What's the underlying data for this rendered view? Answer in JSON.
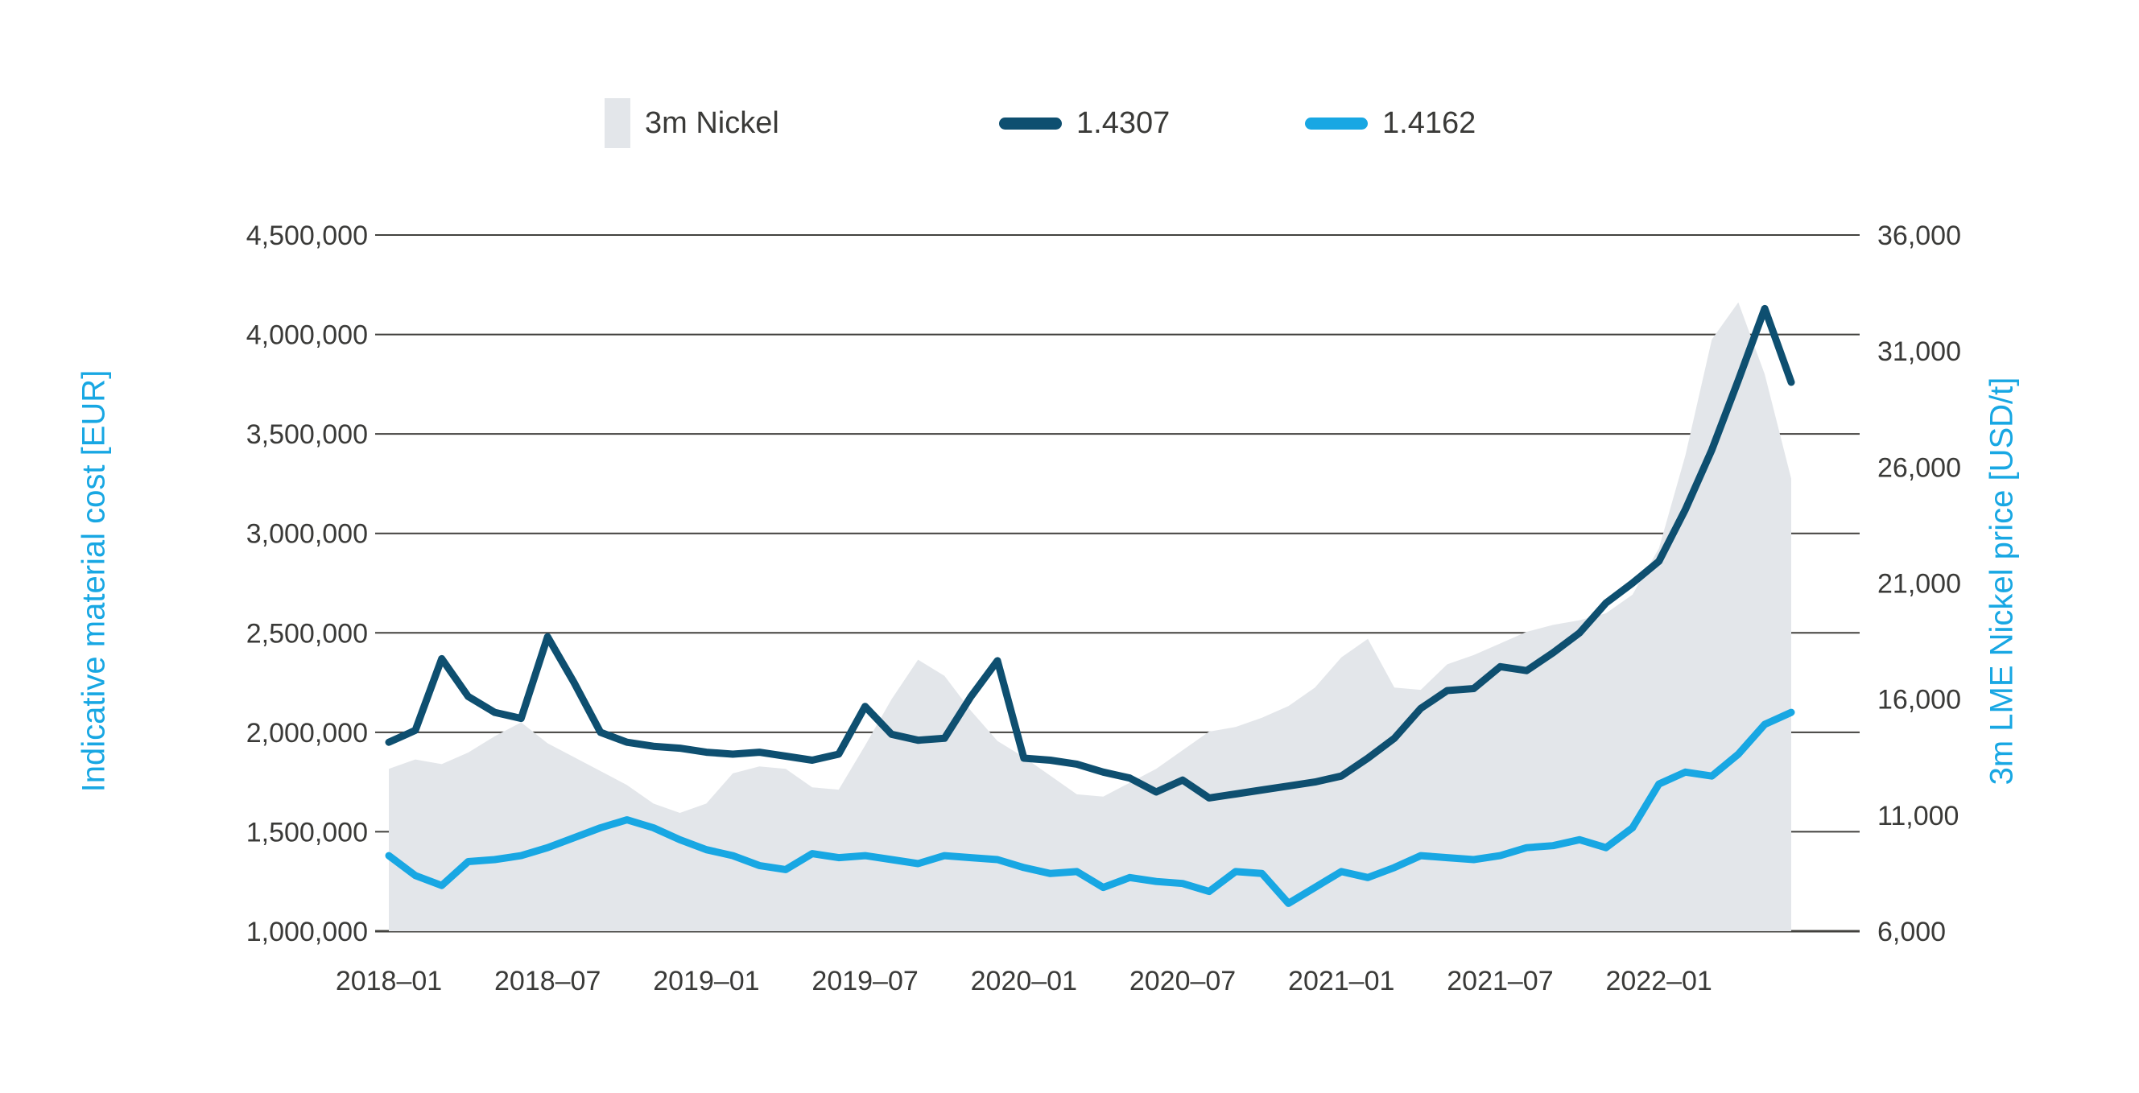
{
  "legend": {
    "items": [
      {
        "label": "3m Nickel",
        "swatch": "area-swatch",
        "color": "#e3e6ea"
      },
      {
        "label": "1.4307",
        "swatch": "line-swatch",
        "color": "#0e4f70"
      },
      {
        "label": "1.4162",
        "swatch": "line-swatch",
        "color": "#18a7e3"
      }
    ]
  },
  "colors": {
    "area": "#e3e6ea",
    "dark_line": "#0e4f70",
    "light_line": "#18a7e3",
    "grid": "#42413e",
    "text": "#3a3a38",
    "axis_title": "#18a7e3"
  },
  "chart_data": {
    "type": "combo",
    "subtypes": [
      "area",
      "line",
      "line"
    ],
    "grid": true,
    "legend_position": "top",
    "x": [
      "2018-01",
      "2018-02",
      "2018-03",
      "2018-04",
      "2018-05",
      "2018-06",
      "2018-07",
      "2018-08",
      "2018-09",
      "2018-10",
      "2018-11",
      "2018-12",
      "2019-01",
      "2019-02",
      "2019-03",
      "2019-04",
      "2019-05",
      "2019-06",
      "2019-07",
      "2019-08",
      "2019-09",
      "2019-10",
      "2019-11",
      "2019-12",
      "2020-01",
      "2020-02",
      "2020-03",
      "2020-04",
      "2020-05",
      "2020-06",
      "2020-07",
      "2020-08",
      "2020-09",
      "2020-10",
      "2020-11",
      "2020-12",
      "2021-01",
      "2021-02",
      "2021-03",
      "2021-04",
      "2021-05",
      "2021-06",
      "2021-07",
      "2021-08",
      "2021-09",
      "2021-10",
      "2021-11",
      "2021-12",
      "2022-01",
      "2022-02",
      "2022-03",
      "2022-04",
      "2022-05",
      "2022-06"
    ],
    "x_tick_labels": [
      "2018–01",
      "2018–07",
      "2019–01",
      "2019–07",
      "2020–01",
      "2020–07",
      "2021–01",
      "2021–07",
      "2022–01"
    ],
    "x_tick_indices": [
      0,
      6,
      12,
      18,
      24,
      30,
      36,
      42,
      48
    ],
    "left_axis": {
      "label": "Indicative material cost [EUR]",
      "min": 1000000,
      "max": 4500000,
      "tick_step": 500000,
      "tick_labels": [
        "4,500,000",
        "4,000,000",
        "3,500,000",
        "3,000,000",
        "2,500,000",
        "2,000,000",
        "1,500,000",
        "1,000,000"
      ]
    },
    "right_axis": {
      "label": "3m LME Nickel price [USD/t]",
      "min": 6000,
      "max": 36000,
      "tick_step": 5000,
      "tick_labels": [
        "36,000",
        "31,000",
        "26,000",
        "21,000",
        "16,000",
        "11,000",
        "6,000"
      ]
    },
    "series": [
      {
        "name": "3m Nickel",
        "type": "area",
        "axis": "right",
        "color": "#e3e6ea",
        "values": [
          13000,
          13400,
          13200,
          13700,
          14400,
          15000,
          14100,
          13500,
          12900,
          12300,
          11500,
          11100,
          11500,
          12800,
          13100,
          13000,
          12200,
          12100,
          14000,
          16000,
          17700,
          17000,
          15500,
          14200,
          13500,
          12700,
          11900,
          11800,
          12400,
          13000,
          13800,
          14600,
          14800,
          15200,
          15700,
          16500,
          17800,
          18600,
          16500,
          16400,
          17500,
          17900,
          18400,
          18900,
          19200,
          19400,
          19700,
          20500,
          22500,
          26500,
          31500,
          33100,
          30000,
          25500
        ]
      },
      {
        "name": "1.4307",
        "type": "line",
        "axis": "left",
        "color": "#0e4f70",
        "values": [
          1950000,
          2010000,
          2370000,
          2180000,
          2100000,
          2070000,
          2480000,
          2250000,
          2000000,
          1950000,
          1930000,
          1920000,
          1900000,
          1890000,
          1900000,
          1880000,
          1860000,
          1890000,
          2130000,
          1990000,
          1960000,
          1970000,
          2180000,
          2360000,
          1870000,
          1860000,
          1840000,
          1800000,
          1770000,
          1700000,
          1760000,
          1670000,
          1690000,
          1710000,
          1730000,
          1750000,
          1780000,
          1870000,
          1970000,
          2120000,
          2210000,
          2220000,
          2330000,
          2310000,
          2400000,
          2500000,
          2650000,
          2750000,
          2860000,
          3120000,
          3420000,
          3770000,
          4130000,
          3760000
        ]
      },
      {
        "name": "1.4162",
        "type": "line",
        "axis": "left",
        "color": "#18a7e3",
        "values": [
          1380000,
          1280000,
          1230000,
          1350000,
          1360000,
          1380000,
          1420000,
          1470000,
          1520000,
          1560000,
          1520000,
          1460000,
          1410000,
          1380000,
          1330000,
          1310000,
          1390000,
          1370000,
          1380000,
          1360000,
          1340000,
          1380000,
          1370000,
          1360000,
          1320000,
          1290000,
          1300000,
          1220000,
          1270000,
          1250000,
          1240000,
          1200000,
          1300000,
          1290000,
          1140000,
          1220000,
          1300000,
          1270000,
          1320000,
          1380000,
          1370000,
          1360000,
          1380000,
          1420000,
          1430000,
          1460000,
          1420000,
          1520000,
          1740000,
          1800000,
          1780000,
          1890000,
          2040000,
          2100000
        ]
      }
    ]
  }
}
